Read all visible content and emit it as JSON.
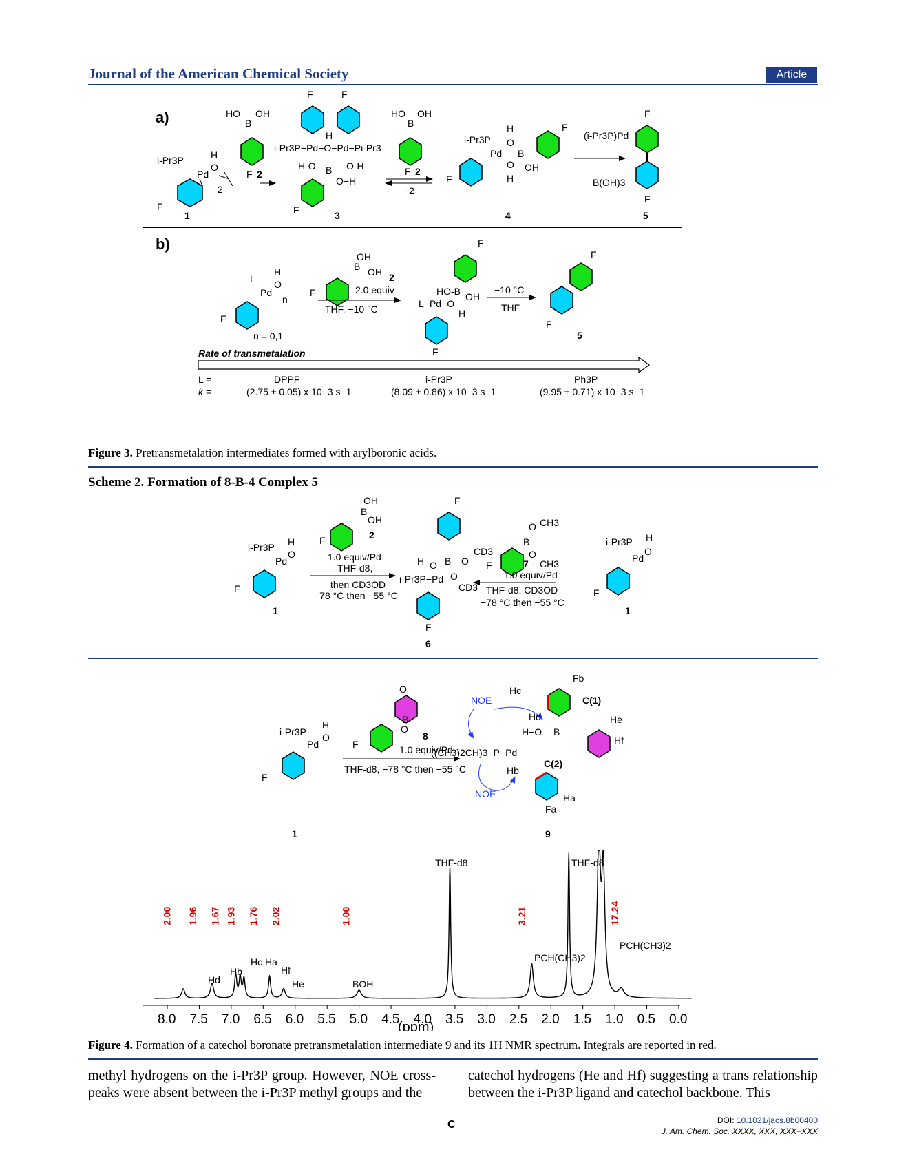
{
  "header": {
    "journal": "Journal of the American Chemical Society",
    "badge": "Article"
  },
  "figure3": {
    "panel_a": "a)",
    "panel_b": "b)",
    "compound_1_label": "1",
    "compound_3_label": "3",
    "compound_4_label": "4",
    "compound_5_label": "5",
    "reagent_2": "2",
    "reagent_minus2": "−2",
    "byproduct": "B(OH)3",
    "pd_ligand": "(i-Pr3P)Pd",
    "ipr3p": "i-Pr3P",
    "n_values": "n = 0,1",
    "equiv": "2.0 equiv",
    "conditions_1": "THF, −10 °C",
    "conditions_2": "−10 °C",
    "conditions_3": "THF",
    "rate_label": "Rate of transmetalation",
    "L_label": "L =",
    "k_label": "k =",
    "ligands": [
      "DPPF",
      "i-Pr3P",
      "Ph3P"
    ],
    "rates": [
      "(2.75 ± 0.05) x 10−3 s−1",
      "(8.09 ± 0.86) x 10−3 s−1",
      "(9.95 ± 0.71) x 10−3 s−1"
    ],
    "caption_bold": "Figure 3.",
    "caption_text": " Pretransmetalation intermediates formed with arylboronic acids."
  },
  "scheme2": {
    "title": "Scheme 2. Formation of 8-B-4 Complex 5",
    "left_cond_1": "1.0 equiv/Pd",
    "left_cond_2": "THF-d8,",
    "left_cond_3": "then CD3OD",
    "left_cond_4": "−78 °C then −55 °C",
    "right_cond_1": "1.0 equiv/Pd",
    "right_cond_2": "THF-d8, CD3OD",
    "right_cond_3": "−78 °C then −55 °C",
    "compound_1": "1",
    "compound_6": "6",
    "compound_7": "7",
    "reagent_2": "2"
  },
  "figure4": {
    "compound_1": "1",
    "compound_8": "8",
    "compound_9": "9",
    "cond_1": "1.0 equiv/Pd",
    "cond_2": "THF-d8, −78 °C then −55 °C",
    "noe": "NOE",
    "c1": "C(1)",
    "c2": "C(2)",
    "complex_formula": "((CH3)2CH)3−P−Pd",
    "ppm_label": "(ppm)",
    "axis_ticks": [
      "8.0",
      "7.5",
      "7.0",
      "6.5",
      "6.0",
      "5.5",
      "5.0",
      "4.5",
      "4.0",
      "3.5",
      "3.0",
      "2.5",
      "2.0",
      "1.5",
      "1.0",
      "0.5",
      "0.0"
    ],
    "integrals": [
      "2.00",
      "1.96",
      "1.67",
      "1.93",
      "1.76",
      "2.02",
      "1.00",
      "3.21",
      "17.24"
    ],
    "peak_labels": {
      "hd": "Hd",
      "hb": "Hb",
      "hc_ha": "Hc  Ha",
      "hf": "Hf",
      "he": "He",
      "boh": "BOH",
      "thf_1": "THF-d8",
      "thf_2": "THF-d8",
      "pch": "PCH(CH3)2",
      "pch3": "PCH(CH3)2"
    },
    "caption_bold": "Figure 4.",
    "caption_text": " Formation of a catechol boronate pretransmetalation intermediate 9 and its 1H NMR spectrum. Integrals are reported in red."
  },
  "body": {
    "left": "methyl hydrogens on the i-Pr3P group. However, NOE cross-peaks were absent between the i-Pr3P methyl groups and the",
    "right": "catechol hydrogens (He and Hf) suggesting a trans relationship between the i-Pr3P ligand and catechol backbone. This"
  },
  "footer": {
    "page": "C",
    "doi_prefix": "DOI: ",
    "doi": "10.1021/jacs.8b00400",
    "citation": "J. Am. Chem. Soc. XXXX, XXX, XXX−XXX"
  },
  "colors": {
    "accent": "#1f3c88",
    "cyan_ring": "#00d4ff",
    "green_ring": "#18e018",
    "magenta_ring": "#e040e0",
    "integral_red": "#e00000"
  }
}
